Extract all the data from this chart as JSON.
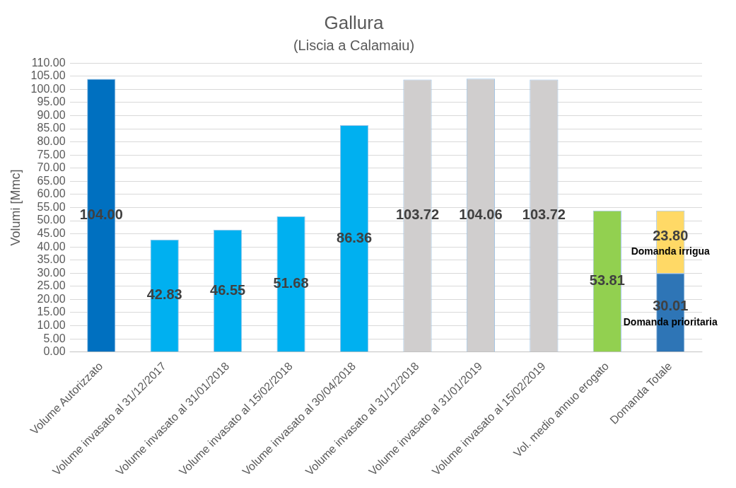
{
  "chart_data": {
    "type": "bar",
    "title": "Gallura",
    "subtitle": "(Liscia a Calamaiu)",
    "ylabel": "Volumi [Mmc]",
    "categories": [
      "Volume Autorizzato",
      "Volume invasato al 31/12/2017",
      "Volume invasato al 31/01/2018",
      "Volume invasato al 15/02/2018",
      "Volume invasato al 30/04/2018",
      "Volume invasato al 31/12/2018",
      "Volume invasato al 31/01/2019",
      "Volume invasato al 15/02/2019",
      "Vol. medio annuo erogato",
      "Domanda Totale"
    ],
    "stacked": true,
    "series": [
      {
        "colors": [
          "#0070c0",
          "#00b0f0",
          "#00b0f0",
          "#00b0f0",
          "#00b0f0",
          "#d0cece",
          "#d0cece",
          "#d0cece",
          "#92d050",
          null
        ],
        "values": [
          104,
          42.83,
          46.55,
          51.68,
          86.36,
          103.72,
          104.06,
          103.72,
          53.81,
          null
        ],
        "value_labels": [
          "104.00",
          "42.83",
          "46.55",
          "51.68",
          "86.36",
          "103.72",
          "104.06",
          "103.72",
          "53.81",
          null
        ]
      },
      {
        "name": "Domanda prioritaria",
        "color": "#2e75b6",
        "values": [
          null,
          null,
          null,
          null,
          null,
          null,
          null,
          null,
          null,
          30.01
        ],
        "value_labels": [
          null,
          null,
          null,
          null,
          null,
          null,
          null,
          null,
          null,
          "30.01"
        ]
      },
      {
        "name": "Domanda irrigua",
        "color": "#ffd966",
        "values": [
          null,
          null,
          null,
          null,
          null,
          null,
          null,
          null,
          null,
          23.8
        ],
        "value_labels": [
          null,
          null,
          null,
          null,
          null,
          null,
          null,
          null,
          null,
          "23.80"
        ]
      }
    ],
    "ylim": [
      0,
      110
    ],
    "yticks": [
      {
        "value": 0,
        "label": "0.00"
      },
      {
        "value": 5,
        "label": "5.00"
      },
      {
        "value": 10,
        "label": "10.00"
      },
      {
        "value": 15,
        "label": "15.00"
      },
      {
        "value": 20,
        "label": "20.00"
      },
      {
        "value": 25,
        "label": "25.00"
      },
      {
        "value": 30,
        "label": "30.00"
      },
      {
        "value": 35,
        "label": "35.00"
      },
      {
        "value": 40,
        "label": "40.00"
      },
      {
        "value": 45,
        "label": "45.00"
      },
      {
        "value": 50,
        "label": "50.00"
      },
      {
        "value": 55,
        "label": "55.00"
      },
      {
        "value": 60,
        "label": "60.00"
      },
      {
        "value": 65,
        "label": "65.00"
      },
      {
        "value": 70,
        "label": "70.00"
      },
      {
        "value": 75,
        "label": "75.00"
      },
      {
        "value": 80,
        "label": "80.00"
      },
      {
        "value": 85,
        "label": "85.00"
      },
      {
        "value": 90,
        "label": "90.00"
      },
      {
        "value": 95,
        "label": "95.00"
      },
      {
        "value": 100,
        "label": "100.00"
      },
      {
        "value": 105,
        "label": "105.00"
      },
      {
        "value": 110,
        "label": "110.00"
      }
    ],
    "grid": "y",
    "legend": false
  }
}
